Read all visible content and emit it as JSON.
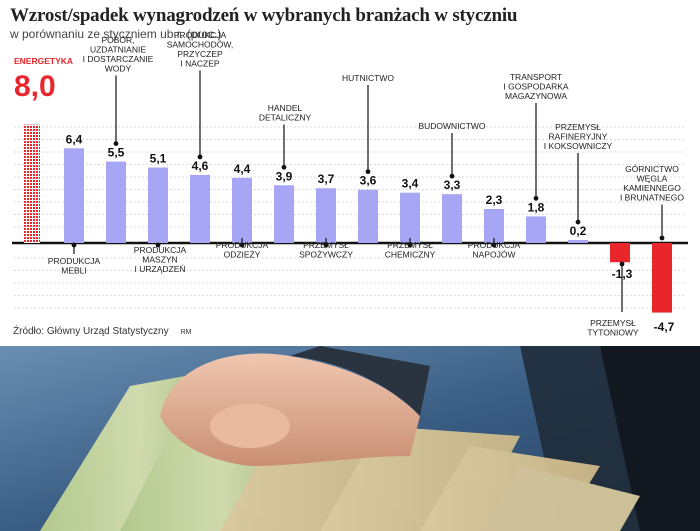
{
  "chart_data": {
    "type": "bar",
    "title": "Wzrost/spadek wynagrodzeń w wybranych branżach w styczniu",
    "subtitle": "w porównaniu ze styczniem ub.r. (proc.)",
    "categories": [
      "ENERGETYKA",
      "PRODUKCJA MEBLI",
      "POBÓR, UZDATNIANIE I DOSTARCZANIE WODY",
      "PRODUKCJA MASZYN I URZĄDZEŃ",
      "PRODUKCJA SAMOCHODÓW, PRZYCZEP I NACZEP",
      "PRODUKCJA ODZIEŻY",
      "HANDEL DETALICZNY",
      "PRZEMYSŁ SPOŻYWCZY",
      "HUTNICTWO",
      "PRZEMYSŁ CHEMICZNY",
      "BUDOWNICTWO",
      "PRODUKCJA NAPOJÓW",
      "TRANSPORT I GOSPODARKA MAGAZYNOWA",
      "PRZEMYSŁ RAFINERYJNY I KOKSOWNICZY",
      "PRZEMYSŁ TYTONIOWY",
      "GÓRNICTWO WĘGLA KAMIENNEGO I BRUNATNEGO"
    ],
    "values": [
      8.0,
      6.4,
      5.5,
      5.1,
      4.6,
      4.4,
      3.9,
      3.7,
      3.6,
      3.4,
      3.3,
      2.3,
      1.8,
      0.2,
      -1.3,
      -4.7
    ],
    "value_labels": [
      "8,0",
      "6,4",
      "5,5",
      "5,1",
      "4,6",
      "4,4",
      "3,9",
      "3,7",
      "3,6",
      "3,4",
      "3,3",
      "2,3",
      "1,8",
      "0,2",
      "-1,3",
      "-4,7"
    ],
    "annotation_lines": [
      [
        "ENERGETYKA"
      ],
      [
        "PRODUKCJA",
        "MEBLI"
      ],
      [
        "POBÓR,",
        "UZDATNIANIE",
        "I DOSTARCZANIE",
        "WODY"
      ],
      [
        "PRODUKCJA",
        "MASZYN",
        "I URZĄDZEŃ"
      ],
      [
        "PRODUKCJA",
        "SAMOCHODÓW,",
        "PRZYCZEP",
        "I NACZEP"
      ],
      [
        "PRODUKCJA",
        "ODZIEŻY"
      ],
      [
        "HANDEL",
        "DETALICZNY"
      ],
      [
        "PRZEMYSŁ",
        "SPOŻYWCZY"
      ],
      [
        "HUTNICTWO"
      ],
      [
        "PRZEMYSŁ",
        "CHEMICZNY"
      ],
      [
        "BUDOWNICTWO"
      ],
      [
        "PRODUKCJA",
        "NAPOJÓW"
      ],
      [
        "TRANSPORT",
        "I GOSPODARKA",
        "MAGAZYNOWA"
      ],
      [
        "PRZEMYSŁ",
        "RAFINERYJNY",
        "I KOKSOWNICZY"
      ],
      [
        "PRZEMYSŁ",
        "TYTONIOWY"
      ],
      [
        "GÓRNICTWO",
        "WĘGLA",
        "KAMIENNEGO",
        "I BRUNATNEGO"
      ]
    ],
    "ylim": [
      -4.7,
      8.0
    ],
    "grid": true,
    "colors": {
      "positive": "#a6a6f4",
      "negative": "#e8262b",
      "highlight": "#e8262b",
      "label_red": "#e8262b",
      "zero_line": "#111111"
    }
  },
  "source": "Źródło: Główny Urząd Statystyczny",
  "credit": "RM"
}
